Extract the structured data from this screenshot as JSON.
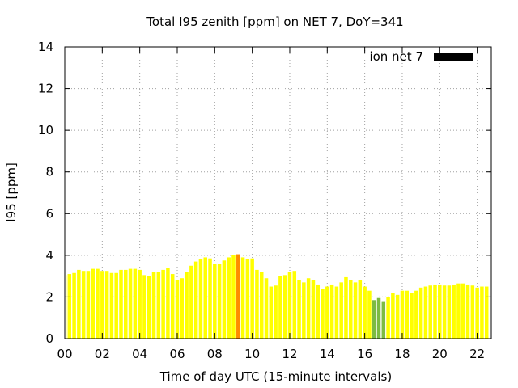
{
  "chart_data": {
    "type": "bar",
    "title": "Total I95 zenith [ppm] on NET 7, DoY=341",
    "xlabel": "Time of day UTC (15-minute intervals)",
    "ylabel": "I95 [ppm]",
    "ylim": [
      0,
      14
    ],
    "xlim": [
      0,
      22.75
    ],
    "grid": true,
    "legend": {
      "label": "ion net 7",
      "color": "#000000",
      "placement": "top-right"
    },
    "x_ticks": [
      "00",
      "02",
      "04",
      "06",
      "08",
      "10",
      "12",
      "14",
      "16",
      "18",
      "20",
      "22"
    ],
    "y_ticks": [
      "0",
      "2",
      "4",
      "6",
      "8",
      "10",
      "12",
      "14"
    ],
    "interval_hours": 0.25,
    "bar_colors": {
      "default": "#ffff00",
      "high": "#ff8c00",
      "low": "#7cbb42"
    },
    "highlight": {
      "high_indices": [
        37
      ],
      "low_indices": [
        66,
        67,
        68
      ]
    },
    "values": [
      3.05,
      3.1,
      3.15,
      3.3,
      3.25,
      3.25,
      3.35,
      3.35,
      3.25,
      3.25,
      3.15,
      3.15,
      3.3,
      3.3,
      3.35,
      3.35,
      3.3,
      3.05,
      3.0,
      3.2,
      3.2,
      3.3,
      3.4,
      3.1,
      2.8,
      2.9,
      3.2,
      3.5,
      3.7,
      3.8,
      3.9,
      3.85,
      3.6,
      3.6,
      3.75,
      3.9,
      4.0,
      4.05,
      3.9,
      3.8,
      3.85,
      3.3,
      3.2,
      2.9,
      2.5,
      2.55,
      3.0,
      3.05,
      3.2,
      3.25,
      2.8,
      2.7,
      2.9,
      2.8,
      2.6,
      2.4,
      2.5,
      2.6,
      2.5,
      2.7,
      2.95,
      2.8,
      2.7,
      2.8,
      2.5,
      2.3,
      1.85,
      1.95,
      1.8,
      2.0,
      2.2,
      2.1,
      2.3,
      2.3,
      2.2,
      2.3,
      2.45,
      2.5,
      2.55,
      2.6,
      2.6,
      2.55,
      2.55,
      2.6,
      2.65,
      2.65,
      2.6,
      2.55,
      2.45,
      2.5,
      2.5
    ]
  }
}
